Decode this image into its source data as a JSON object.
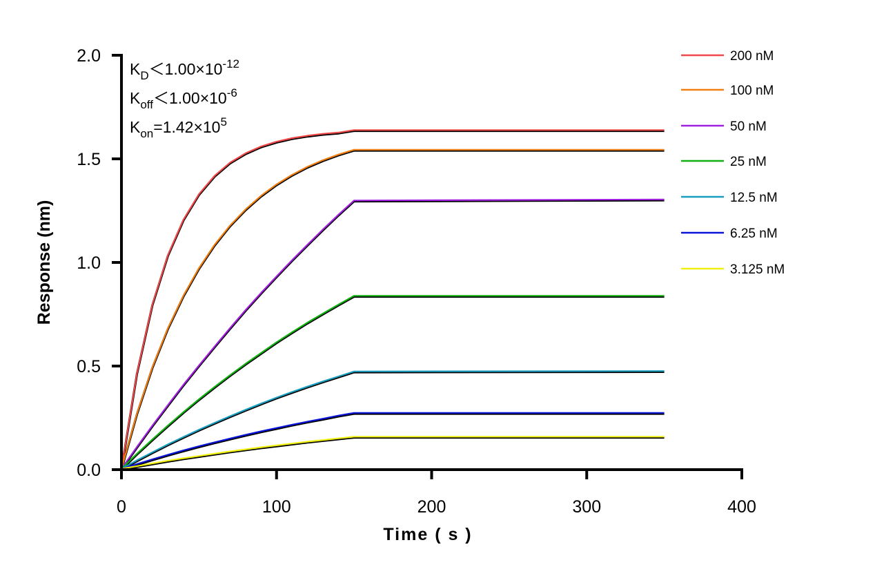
{
  "chart_data": {
    "type": "line",
    "xlabel": "Time ( s )",
    "ylabel": "Response (nm)",
    "xlim": [
      0,
      400
    ],
    "ylim": [
      0,
      2.0
    ],
    "xticks": [
      "0",
      "100",
      "200",
      "300",
      "400"
    ],
    "yticks": [
      "0.0",
      "0.5",
      "1.0",
      "1.5",
      "2.0"
    ],
    "grid": false,
    "legend_position": "right",
    "fit_color": "#000000",
    "annotations": [
      {
        "main": "K",
        "sub": "D",
        "rest": "＜1.00×10",
        "sup": "-12"
      },
      {
        "main": "K",
        "sub": "off",
        "rest": "＜1.00×10",
        "sup": "-6"
      },
      {
        "main": "K",
        "sub": "on",
        "rest": "=1.42×10",
        "sup": "5"
      }
    ],
    "x": [
      0,
      10,
      20,
      30,
      40,
      50,
      60,
      70,
      80,
      90,
      100,
      110,
      120,
      130,
      140,
      150,
      350
    ],
    "series": [
      {
        "name": "200 nM",
        "color": "#f04848",
        "values": [
          0,
          0.462,
          0.794,
          1.032,
          1.203,
          1.326,
          1.414,
          1.478,
          1.523,
          1.556,
          1.579,
          1.596,
          1.608,
          1.617,
          1.623,
          1.635,
          1.635
        ]
      },
      {
        "name": "100 nM",
        "color": "#f07f10",
        "values": [
          0,
          0.267,
          0.491,
          0.679,
          0.836,
          0.969,
          1.081,
          1.174,
          1.252,
          1.318,
          1.373,
          1.419,
          1.458,
          1.49,
          1.517,
          1.54,
          1.54
        ]
      },
      {
        "name": "50 nM",
        "color": "#a020e0",
        "values": [
          0,
          0.106,
          0.209,
          0.308,
          0.406,
          0.499,
          0.59,
          0.679,
          0.766,
          0.849,
          0.929,
          1.007,
          1.082,
          1.156,
          1.227,
          1.295,
          1.3
        ]
      },
      {
        "name": "25 nM",
        "color": "#10b010",
        "values": [
          0,
          0.073,
          0.142,
          0.209,
          0.274,
          0.336,
          0.395,
          0.452,
          0.507,
          0.559,
          0.611,
          0.659,
          0.706,
          0.75,
          0.793,
          0.835,
          0.835
        ]
      },
      {
        "name": "12.5 nM",
        "color": "#1a9ec0",
        "values": [
          0,
          0.041,
          0.08,
          0.118,
          0.154,
          0.189,
          0.222,
          0.254,
          0.285,
          0.315,
          0.344,
          0.371,
          0.397,
          0.422,
          0.446,
          0.47,
          0.472
        ]
      },
      {
        "name": "6.25 nM",
        "color": "#0a14d8",
        "values": [
          0,
          0.023,
          0.046,
          0.068,
          0.089,
          0.109,
          0.128,
          0.146,
          0.164,
          0.181,
          0.197,
          0.213,
          0.228,
          0.242,
          0.257,
          0.27,
          0.27
        ]
      },
      {
        "name": "3.125 nM",
        "color": "#f0f010",
        "values": [
          0,
          0.013,
          0.026,
          0.039,
          0.051,
          0.062,
          0.073,
          0.084,
          0.094,
          0.104,
          0.113,
          0.122,
          0.131,
          0.139,
          0.147,
          0.155,
          0.155
        ]
      }
    ]
  }
}
